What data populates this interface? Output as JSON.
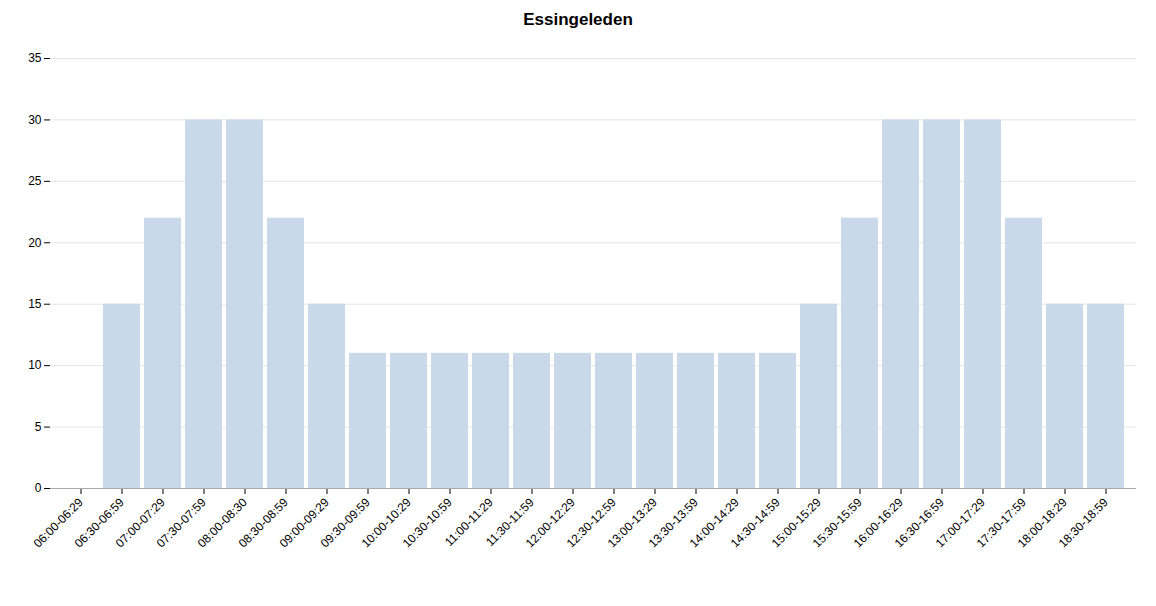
{
  "chart_data": {
    "type": "bar",
    "title": "Essingeleden",
    "categories": [
      "06:00-06:29",
      "06:30-06:59",
      "07:00-07:29",
      "07:30-07:59",
      "08:00-08:30",
      "08:30-08:59",
      "09:00-09:29",
      "09:30-09:59",
      "10:00-10:29",
      "10:30-10:59",
      "11:00-11:29",
      "11:30-11:59",
      "12:00-12:29",
      "12:30-12:59",
      "13:00-13:29",
      "13:30-13:59",
      "14:00-14:29",
      "14:30-14:59",
      "15:00-15:29",
      "15:30-15:59",
      "16:00-16:29",
      "16:30-16:59",
      "17:00-17:29",
      "17:30-17:59",
      "18:00-18:29",
      "18:30-18:59"
    ],
    "values": [
      0,
      15,
      22,
      30,
      30,
      22,
      15,
      11,
      11,
      11,
      11,
      11,
      11,
      11,
      11,
      11,
      11,
      11,
      15,
      22,
      30,
      30,
      30,
      22,
      15,
      15
    ],
    "color": "#c9d9ea",
    "ylim": [
      0,
      35
    ],
    "yticks": [
      0,
      5,
      10,
      15,
      20,
      25,
      30,
      35
    ],
    "grid": true
  }
}
